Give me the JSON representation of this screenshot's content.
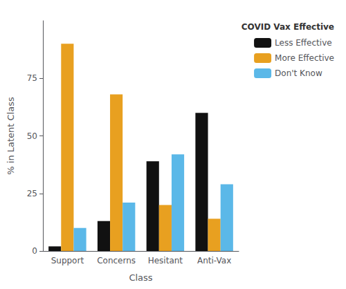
{
  "chart_data": {
    "type": "bar",
    "categories": [
      "Support",
      "Concerns",
      "Hesitant",
      "Anti-Vax"
    ],
    "series": [
      {
        "name": "Less Effective",
        "color": "#111111",
        "values": [
          2,
          13,
          39,
          60
        ]
      },
      {
        "name": "More Effective",
        "color": "#E8A020",
        "values": [
          90,
          68,
          20,
          14
        ]
      },
      {
        "name": "Don't Know",
        "color": "#5BB8E8",
        "values": [
          10,
          21,
          42,
          29
        ]
      }
    ],
    "xlabel": "Class",
    "ylabel": "% in Latent Class",
    "legend_title": "COVID Vax Effective",
    "ylim": [
      0,
      100
    ],
    "yticks": [
      0,
      25,
      50,
      75
    ],
    "grid": false,
    "legend": "upper right"
  }
}
